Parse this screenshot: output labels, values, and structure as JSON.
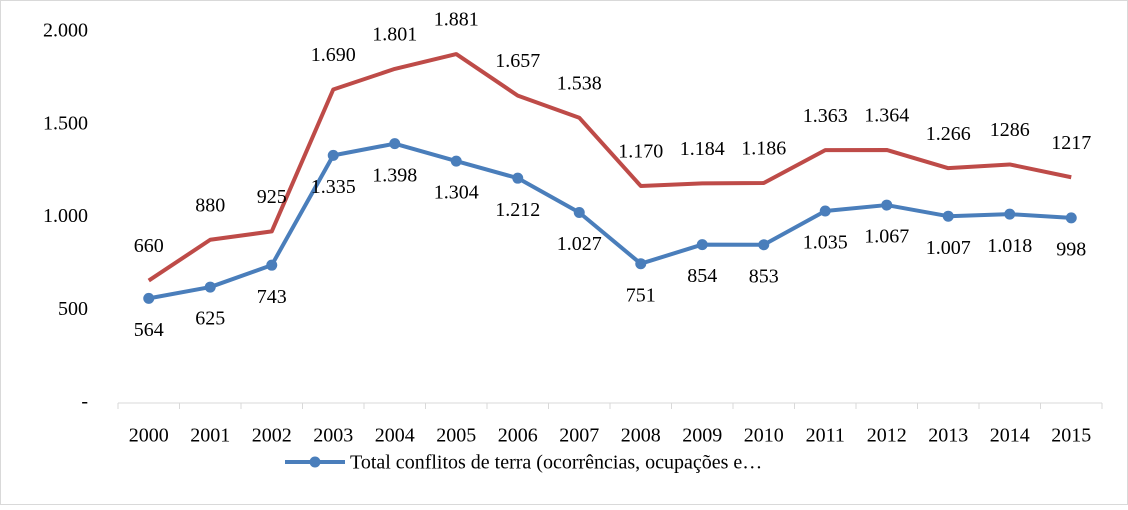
{
  "chart_data": {
    "type": "line",
    "categories": [
      "2000",
      "2001",
      "2002",
      "2003",
      "2004",
      "2005",
      "2006",
      "2007",
      "2008",
      "2009",
      "2010",
      "2011",
      "2012",
      "2013",
      "2014",
      "2015"
    ],
    "series": [
      {
        "name": "Total conflitos de terra (ocorrências, ocupações e…",
        "color": "#4a7ebb",
        "marker": true,
        "values": [
          564,
          625,
          743,
          1335,
          1398,
          1304,
          1212,
          1027,
          751,
          854,
          853,
          1035,
          1067,
          1007,
          1018,
          998
        ],
        "value_labels": [
          "564",
          "625",
          "743",
          "1.335",
          "1.398",
          "1.304",
          "1.212",
          "1.027",
          "751",
          "854",
          "853",
          "1.035",
          "1.067",
          "1.007",
          "1.018",
          "998"
        ]
      },
      {
        "color": "#be4b48",
        "marker": false,
        "values": [
          660,
          880,
          925,
          1690,
          1801,
          1881,
          1657,
          1538,
          1170,
          1184,
          1186,
          1363,
          1364,
          1266,
          1286,
          1217
        ],
        "value_labels": [
          "660",
          "880",
          "925",
          "1.690",
          "1.801",
          "1.881",
          "1.657",
          "1.538",
          "1.170",
          "1.184",
          "1.186",
          "1.363",
          "1.364",
          "1.266",
          "1286",
          "1217"
        ]
      }
    ],
    "ylim": [
      0,
      2000
    ],
    "yticks": [
      {
        "value": 0,
        "label": "-"
      },
      500,
      {
        "value": 1000,
        "label": "1.000"
      },
      {
        "value": 1500,
        "label": "1.500"
      },
      {
        "value": 2000,
        "label": "2.000"
      }
    ],
    "grid": false,
    "legend": "bottom"
  }
}
